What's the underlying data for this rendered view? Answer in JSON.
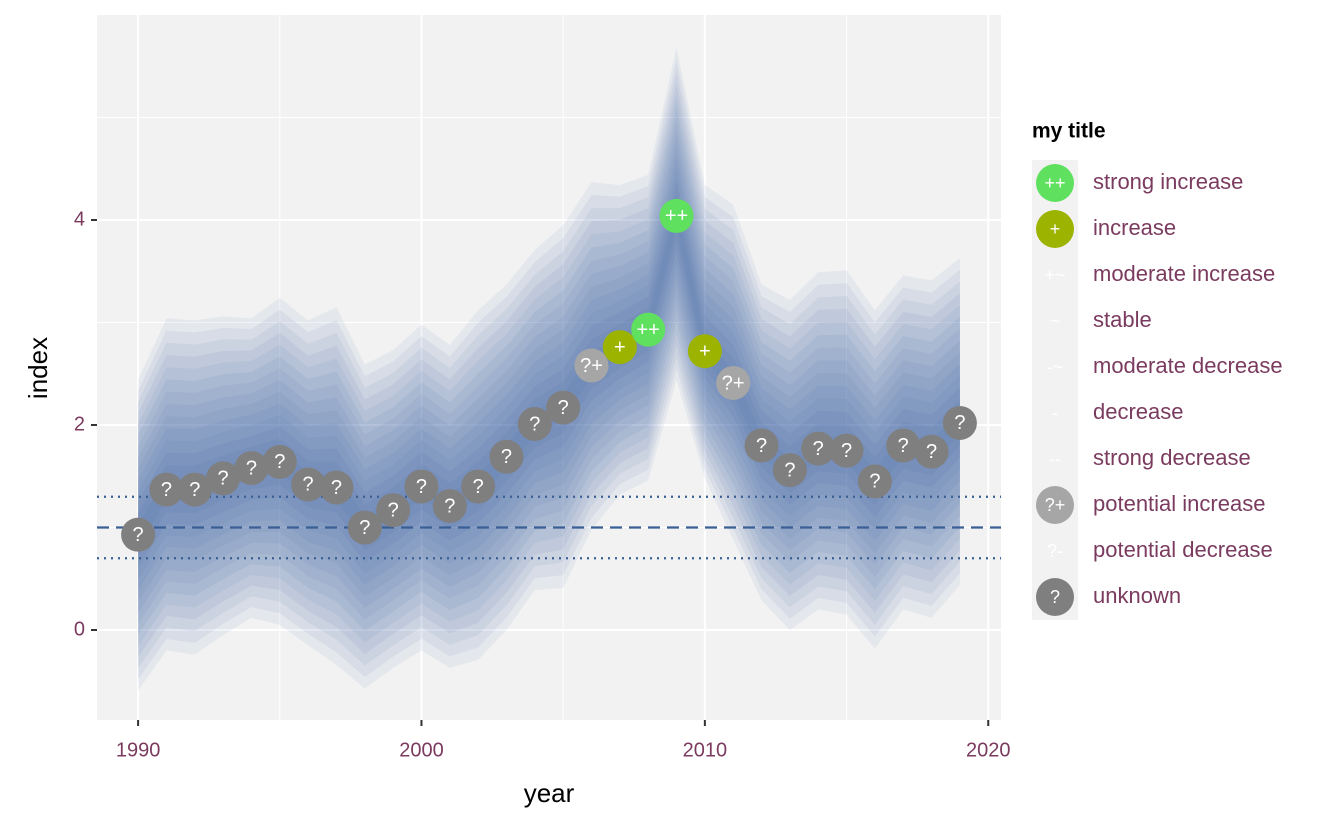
{
  "chart_data": {
    "type": "fan",
    "x_label": "year",
    "y_label": "index",
    "x": [
      1990,
      1991,
      1992,
      1993,
      1994,
      1995,
      1996,
      1997,
      1998,
      1999,
      2000,
      2001,
      2002,
      2003,
      2004,
      2005,
      2006,
      2007,
      2008,
      2009,
      2010,
      2011,
      2012,
      2013,
      2014,
      2015,
      2016,
      2017,
      2018,
      2019
    ],
    "values": [
      0.93,
      1.37,
      1.37,
      1.48,
      1.58,
      1.64,
      1.42,
      1.39,
      1.0,
      1.17,
      1.4,
      1.21,
      1.4,
      1.69,
      2.01,
      2.17,
      2.58,
      2.76,
      2.93,
      4.04,
      2.72,
      2.41,
      1.8,
      1.56,
      1.77,
      1.75,
      1.45,
      1.8,
      1.74,
      2.02
    ],
    "upper": [
      2.44,
      3.04,
      3.02,
      3.06,
      3.04,
      3.24,
      3.02,
      3.15,
      2.59,
      2.73,
      2.98,
      2.78,
      3.12,
      3.37,
      3.71,
      3.95,
      4.37,
      4.34,
      4.44,
      5.68,
      4.34,
      4.15,
      3.37,
      3.22,
      3.49,
      3.51,
      3.12,
      3.46,
      3.41,
      3.63
    ],
    "lower": [
      -0.59,
      -0.2,
      -0.24,
      -0.05,
      0.12,
      0.05,
      -0.15,
      -0.34,
      -0.57,
      -0.37,
      -0.2,
      -0.37,
      -0.29,
      0.0,
      0.39,
      0.41,
      0.98,
      1.32,
      1.46,
      2.44,
      1.48,
      0.88,
      0.29,
      0.0,
      0.2,
      0.15,
      -0.18,
      0.2,
      0.12,
      0.44
    ],
    "point_labels": [
      "?",
      "?",
      "?",
      "?",
      "?",
      "?",
      "?",
      "?",
      "?",
      "?",
      "?",
      "?",
      "?",
      "?",
      "?",
      "?",
      "?+",
      "+",
      "++",
      "++",
      "+",
      "?+",
      "?",
      "?",
      "?",
      "?",
      "?",
      "?",
      "?",
      "?"
    ],
    "band_color": "#2f62a1",
    "reference_line": 1,
    "threshold_lines": [
      0.7,
      1.3
    ],
    "reference_color": "#3a5f95",
    "xlim": [
      1988.55,
      2020.45
    ],
    "xticks": [
      1990,
      2000,
      2010,
      2020
    ],
    "xminor": [
      1995,
      2005,
      2015
    ],
    "ylim": [
      -0.878,
      6.0
    ],
    "yticks": [
      0,
      2,
      4
    ],
    "yminor": [
      1,
      3,
      5
    ],
    "grid": true,
    "legend": {
      "title": "my title",
      "position": "right",
      "entries": [
        {
          "symbol": "++",
          "name": "strong increase",
          "color": "#5fe05f"
        },
        {
          "symbol": "+",
          "name": "increase",
          "color": "#9cb300"
        },
        {
          "symbol": "+~",
          "name": "moderate increase",
          "color": "none"
        },
        {
          "symbol": "~",
          "name": "stable",
          "color": "none"
        },
        {
          "symbol": "-~",
          "name": "moderate decrease",
          "color": "none"
        },
        {
          "symbol": "-",
          "name": "decrease",
          "color": "none"
        },
        {
          "symbol": "--",
          "name": "strong decrease",
          "color": "none"
        },
        {
          "symbol": "?+",
          "name": "potential increase",
          "color": "#a6a6a6"
        },
        {
          "symbol": "?-",
          "name": "potential decrease",
          "color": "none"
        },
        {
          "symbol": "?",
          "name": "unknown",
          "color": "#7f7f7f"
        }
      ]
    }
  }
}
